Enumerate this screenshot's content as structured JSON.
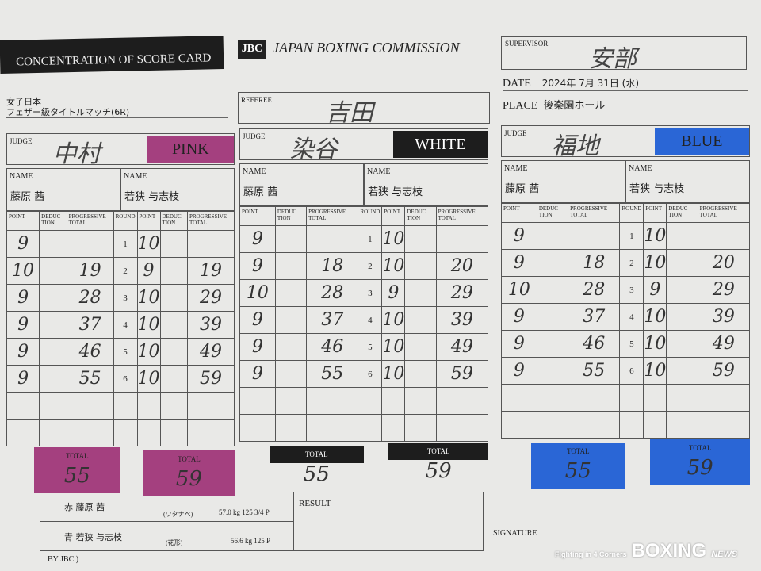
{
  "header": {
    "title": "CONCENTRATION OF SCORE CARD",
    "org": "JAPAN BOXING COMMISSION",
    "logo": "JBC",
    "bout_line1": "女子日本",
    "bout_line2": "フェザー級タイトルマッチ(6R)",
    "supervisor_label": "SUPERVISOR",
    "supervisor": "安部",
    "date_label": "DATE",
    "date": "2024年 7月 31日 (水)",
    "place_label": "PLACE",
    "place": "後楽園ホール",
    "referee_label": "REFEREE",
    "referee": "吉田"
  },
  "labels": {
    "judge": "JUDGE",
    "name": "NAME",
    "point": "POINT",
    "deduction": "DEDUC TION",
    "progressive": "PROGRESSIVE TOTAL",
    "round": "ROUND",
    "total": "TOTAL",
    "result": "RESULT",
    "signature": "SIGNATURE"
  },
  "judges": [
    {
      "name": "中村",
      "color_label": "PINK",
      "color": "#a4407f",
      "fighter_a": "藤原 茜",
      "fighter_b": "若狭 与志枝",
      "a_points": [
        "9",
        "10",
        "9",
        "9",
        "9",
        "9"
      ],
      "a_prog": [
        "",
        "19",
        "28",
        "37",
        "46",
        "55"
      ],
      "b_points": [
        "10",
        "9",
        "10",
        "10",
        "10",
        "10"
      ],
      "b_prog": [
        "",
        "19",
        "29",
        "39",
        "49",
        "59"
      ],
      "a_total": "55",
      "b_total": "59"
    },
    {
      "name": "染谷",
      "color_label": "WHITE",
      "color": "#1d1d1d",
      "fighter_a": "藤原 茜",
      "fighter_b": "若狭 与志枝",
      "a_points": [
        "9",
        "9",
        "10",
        "9",
        "9",
        "9"
      ],
      "a_prog": [
        "",
        "18",
        "28",
        "37",
        "46",
        "55"
      ],
      "b_points": [
        "10",
        "10",
        "9",
        "10",
        "10",
        "10"
      ],
      "b_prog": [
        "",
        "20",
        "29",
        "39",
        "49",
        "59"
      ],
      "a_total": "55",
      "b_total": "59"
    },
    {
      "name": "福地",
      "color_label": "BLUE",
      "color": "#2a66d6",
      "fighter_a": "藤原 茜",
      "fighter_b": "若狭 与志枝",
      "a_points": [
        "9",
        "9",
        "10",
        "9",
        "9",
        "9"
      ],
      "a_prog": [
        "",
        "18",
        "28",
        "37",
        "46",
        "55"
      ],
      "b_points": [
        "10",
        "10",
        "9",
        "10",
        "10",
        "10"
      ],
      "b_prog": [
        "",
        "20",
        "29",
        "39",
        "49",
        "59"
      ],
      "a_total": "55",
      "b_total": "59"
    }
  ],
  "rounds": [
    "1",
    "2",
    "3",
    "4",
    "5",
    "6"
  ],
  "fighters": [
    {
      "corner": "赤",
      "name": "藤原 茜",
      "gym": "(ワタナベ)",
      "weight": "57.0 kg 125 3/4 P"
    },
    {
      "corner": "青",
      "name": "若狭 与志枝",
      "gym": "(花形)",
      "weight": "56.6 kg 125 P"
    }
  ],
  "footer": {
    "note": "BY JBC )",
    "watermark_top": "Fighting in 4 Corners",
    "watermark_main": "BOXING",
    "watermark_sub": "NEWS"
  }
}
